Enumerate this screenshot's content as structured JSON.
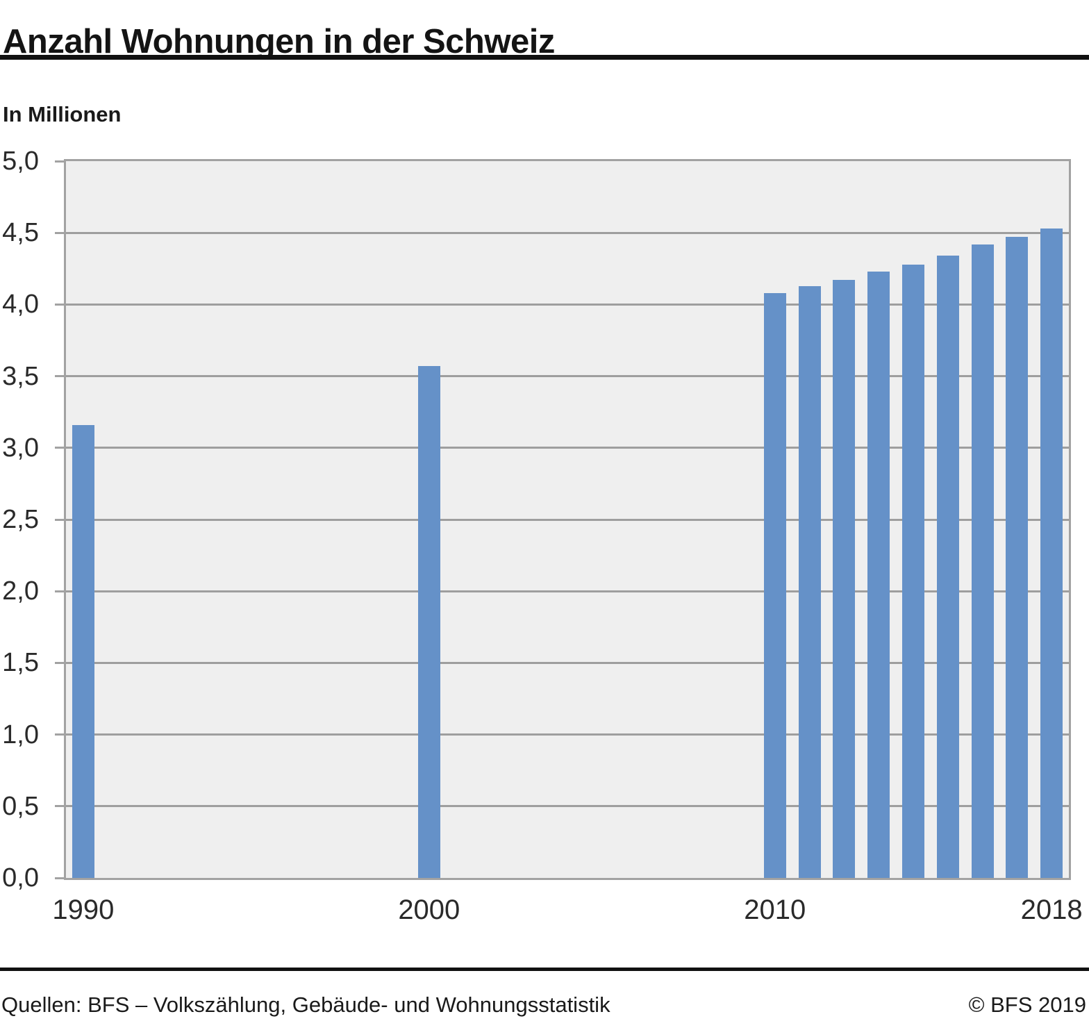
{
  "header": {
    "title": "Anzahl Wohnungen in der Schweiz"
  },
  "chart_data": {
    "type": "bar",
    "title": "Anzahl Wohnungen in der Schweiz",
    "ylabel": "In Millionen",
    "x": [
      1990,
      2000,
      2010,
      2011,
      2012,
      2013,
      2014,
      2015,
      2016,
      2017,
      2018
    ],
    "values": [
      3.16,
      3.57,
      4.08,
      4.13,
      4.17,
      4.23,
      4.28,
      4.34,
      4.42,
      4.47,
      4.53
    ],
    "x_axis": {
      "range": [
        1989.5,
        2018.5
      ],
      "ticks": [
        {
          "pos": 1990,
          "label": "1990"
        },
        {
          "pos": 2000,
          "label": "2000"
        },
        {
          "pos": 2010,
          "label": "2010"
        },
        {
          "pos": 2018,
          "label": "2018"
        }
      ]
    },
    "y_axis": {
      "min": 0,
      "max": 5,
      "step": 0.5,
      "ticks": [
        {
          "value": 5.0,
          "label": "5,0"
        },
        {
          "value": 4.5,
          "label": "4,5"
        },
        {
          "value": 4.0,
          "label": "4,0"
        },
        {
          "value": 3.5,
          "label": "3,5"
        },
        {
          "value": 3.0,
          "label": "3,0"
        },
        {
          "value": 2.5,
          "label": "2,5"
        },
        {
          "value": 2.0,
          "label": "2,0"
        },
        {
          "value": 1.5,
          "label": "1,5"
        },
        {
          "value": 1.0,
          "label": "1,0"
        },
        {
          "value": 0.5,
          "label": "0,5"
        },
        {
          "value": 0.0,
          "label": "0,0"
        }
      ]
    },
    "grid": true,
    "legend": false,
    "colors": {
      "bar": "#6591c8",
      "plot_bg": "#efefef",
      "grid": "#9e9e9e",
      "border": "#a2a2a2"
    }
  },
  "footer": {
    "source": "Quellen: BFS – Volkszählung, Gebäude- und Wohnungsstatistik",
    "copyright": "© BFS 2019"
  }
}
